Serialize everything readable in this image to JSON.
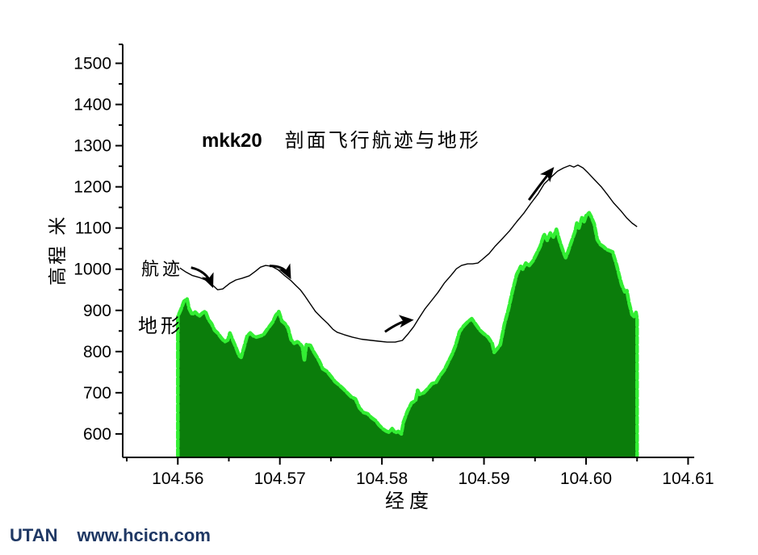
{
  "title": {
    "prefix": "mkk20",
    "main": "剖面飞行航迹与地形"
  },
  "annotations": {
    "path_label": "航迹",
    "terrain_label": "地形"
  },
  "axes": {
    "x_label": "经度",
    "y_label": "高程 米",
    "x_tick_labels": [
      "104.56",
      "104.57",
      "104.58",
      "104.59",
      "104.60",
      "104.61"
    ],
    "y_tick_labels": [
      "600",
      "700",
      "800",
      "900",
      "1000",
      "1100",
      "1200",
      "1300",
      "1400",
      "1500"
    ]
  },
  "footer": {
    "brand": "UTAN",
    "site": "www.hcicn.com",
    "color": "#1f3864"
  },
  "colors": {
    "background": "#ffffff",
    "axis": "#000000",
    "terrain_fill": "#0b7d0b",
    "terrain_outline": "#33ee33",
    "flight_path": "#000000",
    "arrow": "#000000"
  },
  "chart_data": {
    "type": "area",
    "title": "mkk20 剖面飞行航迹与地形",
    "xlabel": "经度",
    "ylabel": "高程 米",
    "x_range": [
      104.5546,
      104.6106
    ],
    "y_range": [
      543,
      1546
    ],
    "x_ticks": [
      104.56,
      104.57,
      104.58,
      104.59,
      104.6,
      104.61
    ],
    "x_minor_step": 0.005,
    "y_ticks": [
      600,
      700,
      800,
      900,
      1000,
      1100,
      1200,
      1300,
      1400,
      1500
    ],
    "y_minor_step": 50,
    "grid": false,
    "legend": "inline-labels",
    "series": [
      {
        "name": "地形",
        "type": "area",
        "fill": "#0b7d0b",
        "outline": "#33ee33",
        "points": [
          [
            104.56,
            885
          ],
          [
            104.5603,
            902
          ],
          [
            104.5606,
            922
          ],
          [
            104.5609,
            928
          ],
          [
            104.5611,
            905
          ],
          [
            104.5614,
            890
          ],
          [
            104.5617,
            896
          ],
          [
            104.5621,
            886
          ],
          [
            104.5624,
            893
          ],
          [
            104.5627,
            898
          ],
          [
            104.563,
            878
          ],
          [
            104.5633,
            868
          ],
          [
            104.5636,
            852
          ],
          [
            104.5639,
            845
          ],
          [
            104.5643,
            832
          ],
          [
            104.5646,
            824
          ],
          [
            104.5649,
            828
          ],
          [
            104.5651,
            845
          ],
          [
            104.5654,
            827
          ],
          [
            104.5657,
            810
          ],
          [
            104.566,
            790
          ],
          [
            104.5662,
            786
          ],
          [
            104.5665,
            812
          ],
          [
            104.5668,
            838
          ],
          [
            104.5671,
            845
          ],
          [
            104.5674,
            838
          ],
          [
            104.5677,
            835
          ],
          [
            104.5681,
            838
          ],
          [
            104.5684,
            841
          ],
          [
            104.5687,
            852
          ],
          [
            104.569,
            862
          ],
          [
            104.5693,
            872
          ],
          [
            104.5696,
            888
          ],
          [
            104.5699,
            897
          ],
          [
            104.5702,
            874
          ],
          [
            104.5705,
            868
          ],
          [
            104.5708,
            857
          ],
          [
            104.5711,
            829
          ],
          [
            104.5714,
            820
          ],
          [
            104.5717,
            824
          ],
          [
            104.5719,
            821
          ],
          [
            104.5722,
            812
          ],
          [
            104.5724,
            778
          ],
          [
            104.5726,
            817
          ],
          [
            104.573,
            815
          ],
          [
            104.5733,
            800
          ],
          [
            104.5736,
            788
          ],
          [
            104.5739,
            775
          ],
          [
            104.5742,
            758
          ],
          [
            104.5746,
            752
          ],
          [
            104.575,
            740
          ],
          [
            104.5754,
            727
          ],
          [
            104.5758,
            719
          ],
          [
            104.5762,
            710
          ],
          [
            104.5766,
            700
          ],
          [
            104.577,
            690
          ],
          [
            104.5774,
            685
          ],
          [
            104.5778,
            663
          ],
          [
            104.5782,
            652
          ],
          [
            104.5786,
            649
          ],
          [
            104.579,
            639
          ],
          [
            104.5794,
            632
          ],
          [
            104.5797,
            622
          ],
          [
            104.5801,
            612
          ],
          [
            104.5804,
            607
          ],
          [
            104.5807,
            604
          ],
          [
            104.581,
            613
          ],
          [
            104.5813,
            603
          ],
          [
            104.5816,
            606
          ],
          [
            104.5819,
            600
          ],
          [
            104.5821,
            628
          ],
          [
            104.5825,
            655
          ],
          [
            104.5829,
            675
          ],
          [
            104.5833,
            681
          ],
          [
            104.5835,
            706
          ],
          [
            104.5837,
            696
          ],
          [
            104.5841,
            700
          ],
          [
            104.5845,
            710
          ],
          [
            104.5849,
            722
          ],
          [
            104.5853,
            725
          ],
          [
            104.5857,
            742
          ],
          [
            104.5861,
            755
          ],
          [
            104.5865,
            775
          ],
          [
            104.5869,
            795
          ],
          [
            104.5872,
            814
          ],
          [
            104.5876,
            848
          ],
          [
            104.588,
            862
          ],
          [
            104.5884,
            872
          ],
          [
            104.5888,
            880
          ],
          [
            104.5892,
            866
          ],
          [
            104.5896,
            852
          ],
          [
            104.59,
            843
          ],
          [
            104.5904,
            835
          ],
          [
            104.5908,
            820
          ],
          [
            104.591,
            798
          ],
          [
            104.5914,
            810
          ],
          [
            104.5916,
            817
          ],
          [
            104.592,
            866
          ],
          [
            104.5924,
            903
          ],
          [
            104.5928,
            948
          ],
          [
            104.5932,
            987
          ],
          [
            104.5936,
            1007
          ],
          [
            104.5938,
            1000
          ],
          [
            104.5941,
            1015
          ],
          [
            104.5944,
            1008
          ],
          [
            104.5948,
            1020
          ],
          [
            104.5952,
            1040
          ],
          [
            104.5955,
            1055
          ],
          [
            104.5959,
            1085
          ],
          [
            104.5962,
            1070
          ],
          [
            104.5965,
            1088
          ],
          [
            104.5968,
            1078
          ],
          [
            104.5971,
            1097
          ],
          [
            104.5974,
            1070
          ],
          [
            104.5978,
            1040
          ],
          [
            104.598,
            1028
          ],
          [
            104.5982,
            1040
          ],
          [
            104.5985,
            1062
          ],
          [
            104.5989,
            1090
          ],
          [
            104.5991,
            1112
          ],
          [
            104.5993,
            1100
          ],
          [
            104.5996,
            1125
          ],
          [
            104.5998,
            1115
          ],
          [
            104.6,
            1130
          ],
          [
            104.6003,
            1137
          ],
          [
            104.6005,
            1128
          ],
          [
            104.6008,
            1110
          ],
          [
            104.6011,
            1072
          ],
          [
            104.6014,
            1060
          ],
          [
            104.6017,
            1055
          ],
          [
            104.602,
            1048
          ],
          [
            104.6023,
            1045
          ],
          [
            104.6026,
            1042
          ],
          [
            104.603,
            1010
          ],
          [
            104.6033,
            980
          ],
          [
            104.6035,
            962
          ],
          [
            104.6038,
            945
          ],
          [
            104.604,
            948
          ],
          [
            104.6042,
            920
          ],
          [
            104.6045,
            890
          ],
          [
            104.6047,
            885
          ],
          [
            104.6049,
            895
          ],
          [
            104.605,
            880
          ]
        ]
      },
      {
        "name": "航迹",
        "type": "line",
        "color": "#000000",
        "points": [
          [
            104.5602,
            1003
          ],
          [
            104.5608,
            993
          ],
          [
            104.5614,
            985
          ],
          [
            104.5621,
            980
          ],
          [
            104.5627,
            974
          ],
          [
            104.5633,
            964
          ],
          [
            104.5639,
            950
          ],
          [
            104.5644,
            952
          ],
          [
            104.5651,
            966
          ],
          [
            104.5657,
            974
          ],
          [
            104.5663,
            978
          ],
          [
            104.567,
            984
          ],
          [
            104.5676,
            995
          ],
          [
            104.5681,
            1005
          ],
          [
            104.5686,
            1009
          ],
          [
            104.5692,
            1007
          ],
          [
            104.5698,
            999
          ],
          [
            104.5704,
            986
          ],
          [
            104.5711,
            972
          ],
          [
            104.5715,
            962
          ],
          [
            104.572,
            950
          ],
          [
            104.5724,
            937
          ],
          [
            104.573,
            915
          ],
          [
            104.5735,
            897
          ],
          [
            104.5741,
            882
          ],
          [
            104.5747,
            868
          ],
          [
            104.5752,
            854
          ],
          [
            104.5756,
            847
          ],
          [
            104.5763,
            841
          ],
          [
            104.5771,
            835
          ],
          [
            104.578,
            830
          ],
          [
            104.579,
            827
          ],
          [
            104.5797,
            825
          ],
          [
            104.5805,
            823
          ],
          [
            104.5813,
            823
          ],
          [
            104.582,
            827
          ],
          [
            104.5825,
            841
          ],
          [
            104.5831,
            860
          ],
          [
            104.5836,
            880
          ],
          [
            104.5842,
            903
          ],
          [
            104.5849,
            925
          ],
          [
            104.5855,
            944
          ],
          [
            104.5861,
            966
          ],
          [
            104.5868,
            986
          ],
          [
            104.5873,
            1001
          ],
          [
            104.5878,
            1009
          ],
          [
            104.5884,
            1013
          ],
          [
            104.5889,
            1013
          ],
          [
            104.5894,
            1015
          ],
          [
            104.5898,
            1023
          ],
          [
            104.5905,
            1038
          ],
          [
            104.5911,
            1056
          ],
          [
            104.5918,
            1074
          ],
          [
            104.5925,
            1093
          ],
          [
            104.5932,
            1115
          ],
          [
            104.5939,
            1136
          ],
          [
            104.5946,
            1160
          ],
          [
            104.5953,
            1183
          ],
          [
            104.5959,
            1207
          ],
          [
            104.5966,
            1224
          ],
          [
            104.5972,
            1238
          ],
          [
            104.5978,
            1246
          ],
          [
            104.5984,
            1252
          ],
          [
            104.5988,
            1248
          ],
          [
            104.5992,
            1253
          ],
          [
            104.5997,
            1246
          ],
          [
            104.6002,
            1234
          ],
          [
            104.6008,
            1218
          ],
          [
            104.6015,
            1200
          ],
          [
            104.6021,
            1181
          ],
          [
            104.6027,
            1161
          ],
          [
            104.6034,
            1142
          ],
          [
            104.604,
            1124
          ],
          [
            104.6045,
            1112
          ],
          [
            104.605,
            1103
          ]
        ]
      }
    ],
    "arrows": [
      {
        "from": [
          104.5613,
          1004
        ],
        "to": [
          104.5633,
          964
        ]
      },
      {
        "from": [
          104.569,
          1008
        ],
        "to": [
          104.5709,
          985
        ]
      },
      {
        "from": [
          104.5803,
          848
        ],
        "to": [
          104.5827,
          876
        ]
      },
      {
        "from": [
          104.5944,
          1168
        ],
        "to": [
          104.5966,
          1240
        ]
      }
    ]
  }
}
